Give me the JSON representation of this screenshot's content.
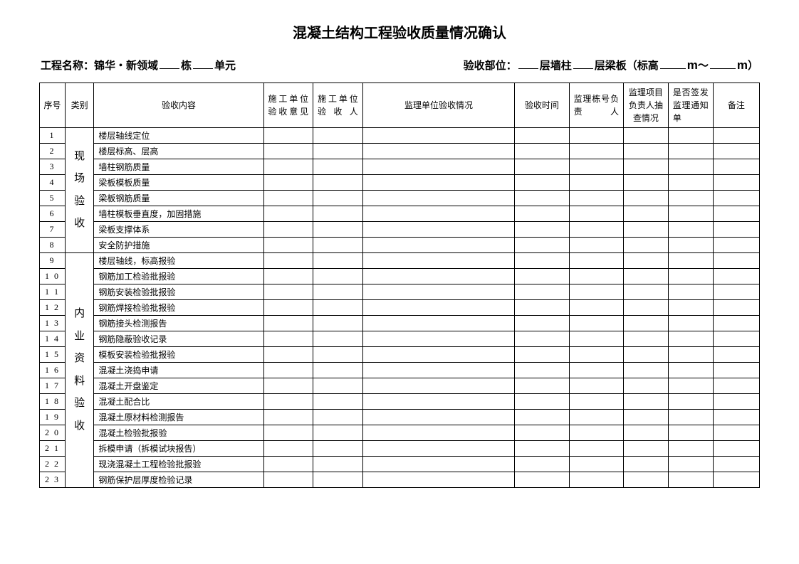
{
  "title": "混凝土结构工程验收质量情况确认",
  "info": {
    "project_label": "工程名称：锦华・新领域",
    "building_suffix": "栋",
    "unit_suffix": "单元",
    "accept_label": "验收部位：",
    "floor_wall": "层墙柱",
    "floor_beam": "层梁板（标高",
    "tilde": "～",
    "close": "）",
    "m": "m"
  },
  "headers": {
    "seq": "序号",
    "cat": "类别",
    "content": "验收内容",
    "op": "施工单位验收意见",
    "person": "施工单位验收人",
    "super": "监理单位验收情况",
    "time": "验收时间",
    "bldg": "监理栋号负责人",
    "check": "监理项目负责人抽查情况",
    "issue": "是否签发监理通知单",
    "note": "备注"
  },
  "cat1": "现场验收",
  "cat2": "内业资料验收",
  "rows1": [
    {
      "n": "1",
      "c": "楼层轴线定位"
    },
    {
      "n": "2",
      "c": "楼层标高、层高"
    },
    {
      "n": "3",
      "c": "墙柱钢筋质量"
    },
    {
      "n": "4",
      "c": "梁板模板质量"
    },
    {
      "n": "5",
      "c": "梁板钢筋质量"
    },
    {
      "n": "6",
      "c": "墙柱模板垂直度，加固措施"
    },
    {
      "n": "7",
      "c": "梁板支撑体系"
    },
    {
      "n": "8",
      "c": "安全防护措施"
    }
  ],
  "rows2": [
    {
      "n": "9",
      "c": "楼层轴线，标高报验"
    },
    {
      "n": "1 0",
      "c": "钢筋加工检验批报验"
    },
    {
      "n": "1 1",
      "c": "钢筋安装检验批报验"
    },
    {
      "n": "1 2",
      "c": "钢筋焊接检验批报验"
    },
    {
      "n": "1 3",
      "c": "钢筋接头检测报告"
    },
    {
      "n": "1 4",
      "c": "钢筋隐蔽验收记录"
    },
    {
      "n": "1 5",
      "c": "模板安装检验批报验"
    },
    {
      "n": "1 6",
      "c": "混凝土浇捣申请"
    },
    {
      "n": "1 7",
      "c": "混凝土开盘鉴定"
    },
    {
      "n": "1 8",
      "c": "混凝土配合比"
    },
    {
      "n": "1 9",
      "c": "混凝土原材料检测报告"
    },
    {
      "n": "2 0",
      "c": "混凝土检验批报验"
    },
    {
      "n": "2 1",
      "c": "拆模申请（拆模试块报告）"
    },
    {
      "n": "2 2",
      "c": "现浇混凝土工程检验批报验"
    },
    {
      "n": "2 3",
      "c": "钢筋保护层厚度检验记录"
    }
  ]
}
